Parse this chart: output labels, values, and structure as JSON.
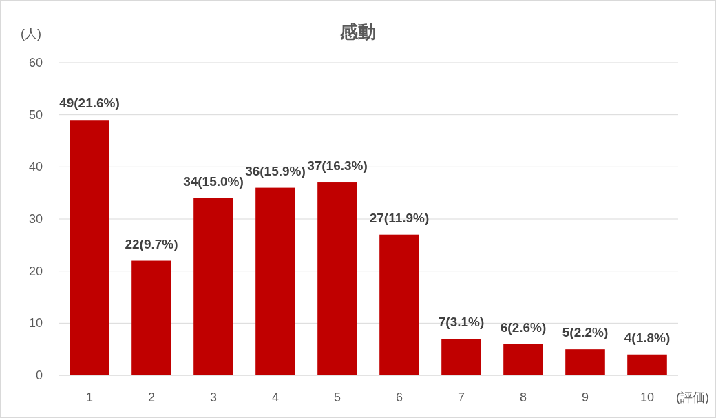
{
  "chart_data": {
    "type": "bar",
    "title": "感動",
    "ylabel": "(人)",
    "xlabel": "(評価)",
    "categories": [
      "1",
      "2",
      "3",
      "4",
      "5",
      "6",
      "7",
      "8",
      "9",
      "10"
    ],
    "values": [
      49,
      22,
      34,
      36,
      37,
      27,
      7,
      6,
      5,
      4
    ],
    "value_labels": [
      "49(21.6%)",
      "22(9.7%)",
      "34(15.0%)",
      "36(15.9%)",
      "37(16.3%)",
      "27(11.9%)",
      "7(3.1%)",
      "6(2.6%)",
      "5(2.2%)",
      "4(1.8%)"
    ],
    "color": "#c00000",
    "ylim": [
      0,
      60
    ],
    "yticks": [
      0,
      10,
      20,
      30,
      40,
      50,
      60
    ],
    "grid": "y"
  }
}
